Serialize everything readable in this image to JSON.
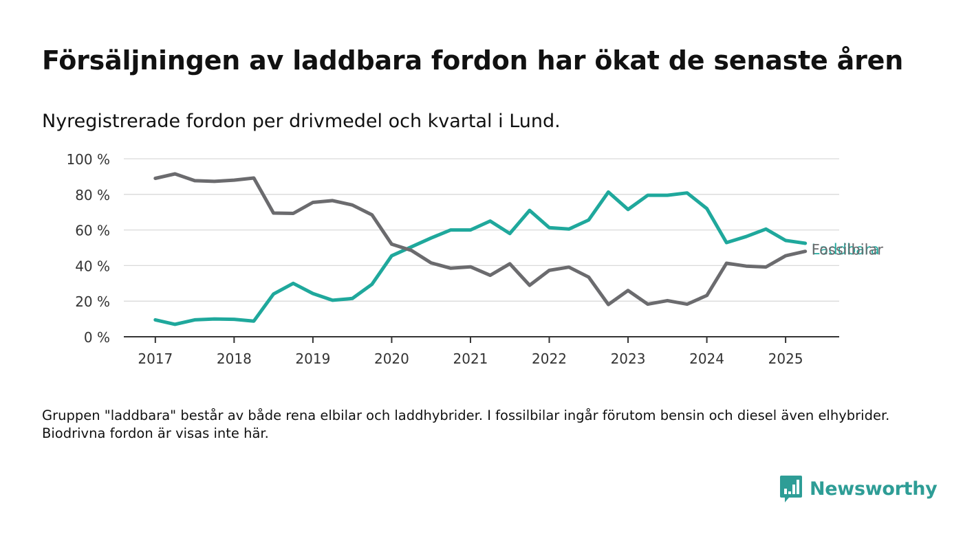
{
  "title": "Försäljningen av laddbara fordon har ökat de senaste åren",
  "subtitle": "Nyregistrerade fordon per drivmedel och kvartal i Lund.",
  "note": "Gruppen \"laddbara\" består av både rena elbilar och laddhybrider. I fossilbilar ingår förutom bensin och diesel även elhybrider. Biodrivna fordon är visas inte här.",
  "brand": {
    "name": "Newsworthy",
    "icon": "newsworthy-logo-icon",
    "color": "#2e9d96"
  },
  "chart_data": {
    "type": "line",
    "x": [
      2017.0,
      2017.25,
      2017.5,
      2017.75,
      2018.0,
      2018.25,
      2018.5,
      2018.75,
      2019.0,
      2019.25,
      2019.5,
      2019.75,
      2020.0,
      2020.25,
      2020.5,
      2020.75,
      2021.0,
      2021.25,
      2021.5,
      2021.75,
      2022.0,
      2022.25,
      2022.5,
      2022.75,
      2023.0,
      2023.25,
      2023.5,
      2023.75,
      2024.0,
      2024.25,
      2024.5,
      2024.75,
      2025.0,
      2025.25
    ],
    "x_ticks": [
      2017,
      2018,
      2019,
      2020,
      2021,
      2022,
      2023,
      2024,
      2025
    ],
    "xlim": [
      2016.6,
      2025.68
    ],
    "y_ticks": [
      {
        "value": 0,
        "label": "0 %"
      },
      {
        "value": 20,
        "label": "20 %"
      },
      {
        "value": 40,
        "label": "40 %"
      },
      {
        "value": 60,
        "label": "60 %"
      },
      {
        "value": 80,
        "label": "80 %"
      },
      {
        "value": 100,
        "label": "100 %"
      }
    ],
    "ylim": [
      0,
      100
    ],
    "grid": true,
    "legend": "direct labels at line ends",
    "series": [
      {
        "name": "Laddbara",
        "color": "#1fa89c",
        "values": [
          9.5,
          7,
          9.5,
          10,
          9.8,
          8.8,
          24,
          30,
          24.3,
          20.5,
          21.5,
          29.5,
          45.5,
          50.5,
          55.5,
          60,
          60,
          65,
          58,
          71,
          61.3,
          60.5,
          65.6,
          81.3,
          71.5,
          79.5,
          79.5,
          80.8,
          72,
          52.9,
          56.3,
          60.5,
          54.1,
          52.5
        ]
      },
      {
        "name": "Fossilbilar",
        "color": "#6b6b6e",
        "values": [
          89,
          91.5,
          87.7,
          87.3,
          88,
          89.2,
          69.5,
          69.3,
          75.5,
          76.5,
          74,
          68.5,
          52,
          48.5,
          41.5,
          38.5,
          39.3,
          34.5,
          41,
          28.9,
          37.3,
          39.1,
          33.5,
          18.1,
          26,
          18.3,
          20.3,
          18.3,
          23.2,
          41.3,
          39.7,
          39.2,
          45.5,
          48
        ]
      }
    ]
  }
}
